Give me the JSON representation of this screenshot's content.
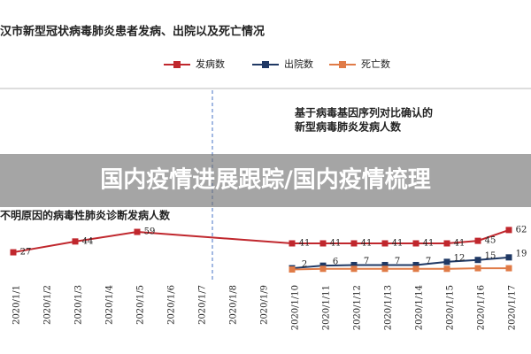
{
  "chart_data": {
    "type": "line",
    "title": "汉市新型冠状病毒肺炎患者发病、出院以及死亡情况",
    "banner": "国内疫情进展跟踪/国内疫情梳理",
    "annotations": [
      "基于病毒基因序列对比确认的",
      "新型病毒肺炎发病人数",
      "不明原因的病毒性肺炎诊断发病人数"
    ],
    "categories": [
      "2020/1/1",
      "2020/1/2",
      "2020/1/3",
      "2020/1/4",
      "2020/1/5",
      "2020/1/6",
      "2020/1/7",
      "2020/1/8",
      "2020/1/9",
      "2020/1/10",
      "2020/1/11",
      "2020/1/12",
      "2020/1/13",
      "2020/1/14",
      "2020/1/15",
      "2020/1/16",
      "2020/1/17"
    ],
    "ylim": [
      -10,
      280
    ],
    "legend": "top",
    "series": [
      {
        "name": "发病数",
        "color": "#c0272d",
        "x": [
          "2020/1/1",
          "2020/1/3",
          "2020/1/5",
          "2020/1/10",
          "2020/1/11",
          "2020/1/12",
          "2020/1/13",
          "2020/1/14",
          "2020/1/15",
          "2020/1/16",
          "2020/1/17"
        ],
        "values": [
          27,
          44,
          59,
          41,
          41,
          41,
          41,
          41,
          41,
          45,
          62
        ]
      },
      {
        "name": "出院数",
        "color": "#1f3864",
        "x": [
          "2020/1/10",
          "2020/1/11",
          "2020/1/12",
          "2020/1/13",
          "2020/1/14",
          "2020/1/15",
          "2020/1/16",
          "2020/1/17"
        ],
        "values": [
          2,
          6,
          7,
          7,
          7,
          12,
          15,
          19
        ]
      },
      {
        "name": "死亡数",
        "color": "#e07b47",
        "x": [
          "2020/1/10",
          "2020/1/11",
          "2020/1/12",
          "2020/1/13",
          "2020/1/14",
          "2020/1/15",
          "2020/1/16",
          "2020/1/17"
        ],
        "values": [
          0,
          1,
          1,
          1,
          1,
          1,
          2,
          2
        ]
      }
    ]
  }
}
